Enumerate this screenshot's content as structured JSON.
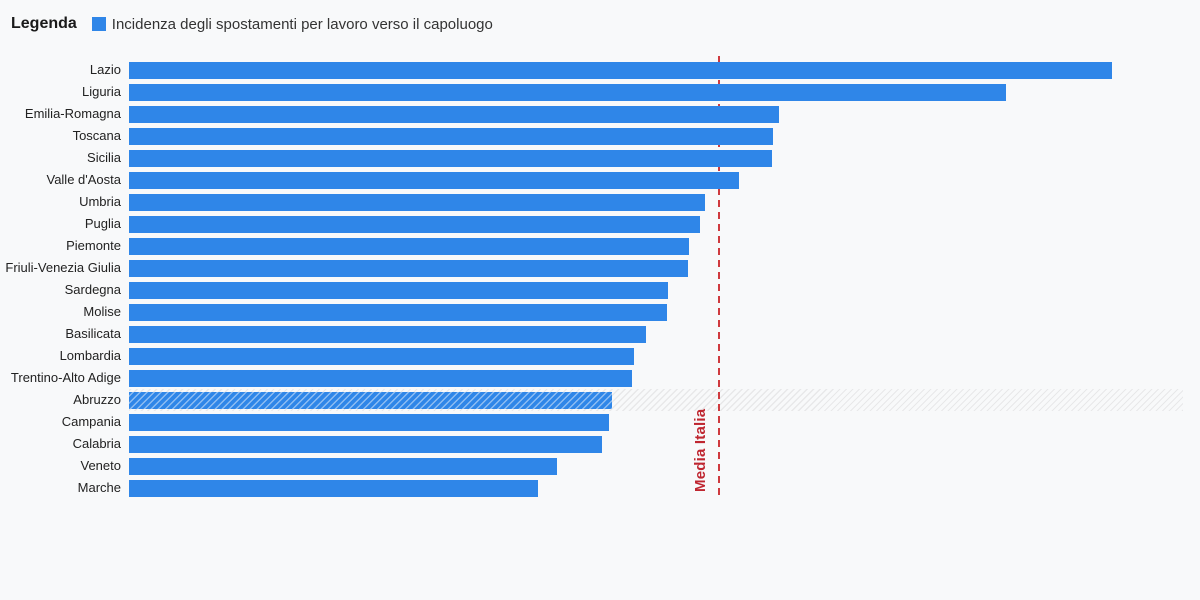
{
  "background": "#f8f9fa",
  "legend": {
    "title": "Legenda",
    "item_label": "Incidenza degli spostamenti per lavoro verso il capoluogo",
    "swatch_color": "#2f86e8"
  },
  "highlighted_category": "Abruzzo",
  "reference_line": {
    "label": "Media Italia",
    "value": 100,
    "line_color": "#cf3a3f",
    "label_color": "#bf2630"
  },
  "chart_data": {
    "type": "bar",
    "orientation": "horizontal",
    "title": "Incidenza degli spostamenti per lavoro verso il capoluogo",
    "categories": [
      "Lazio",
      "Liguria",
      "Emilia-Romagna",
      "Toscana",
      "Sicilia",
      "Valle d'Aosta",
      "Umbria",
      "Puglia",
      "Piemonte",
      "Friuli-Venezia Giulia",
      "Sardegna",
      "Molise",
      "Basilicata",
      "Lombardia",
      "Trentino-Alto Adige",
      "Abruzzo",
      "Campania",
      "Calabria",
      "Veneto",
      "Marche"
    ],
    "values": [
      166.9,
      148.9,
      110.3,
      109.3,
      109.2,
      103.6,
      97.7,
      96.9,
      95.1,
      94.9,
      91.5,
      91.3,
      87.7,
      85.7,
      85.4,
      82.0,
      81.5,
      80.3,
      72.6,
      69.5
    ],
    "value_scale_note": "relative index estimated from bar lengths; Media Italia reference line = 100 (no numeric axis shown in chart)",
    "xlim": [
      0,
      178.9
    ],
    "reference_line": {
      "label": "Media Italia",
      "value": 100
    },
    "bar_color": "#2f86e8",
    "highlighted_category": "Abruzzo",
    "grid": false,
    "legend_position": "top-left",
    "xlabel": "",
    "ylabel": ""
  }
}
